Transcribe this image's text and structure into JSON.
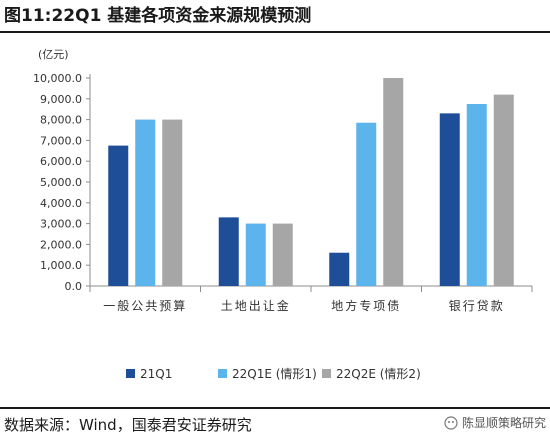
{
  "title": "图11:22Q1 基建各项资金来源规模预测",
  "source": "数据来源：Wind，国泰君安证券研究",
  "watermark": "陈显顺策略研究",
  "colors": {
    "21Q1": "#1f4e99",
    "22Q1E": "#5bb4ec",
    "22Q2E": "#a6a6a6"
  },
  "chart_data": {
    "type": "bar",
    "unit_label": "(亿元)",
    "categories": [
      "一般公共预算",
      "土地出让金",
      "地方专项债",
      "银行贷款"
    ],
    "series": [
      {
        "name": "21Q1",
        "values": [
          6750,
          3300,
          1600,
          8300
        ]
      },
      {
        "name": "22Q1E (情形1)",
        "values": [
          8000,
          3000,
          7850,
          8750
        ]
      },
      {
        "name": "22Q2E (情形2)",
        "values": [
          8000,
          3000,
          10000,
          9200
        ]
      }
    ],
    "ylim": [
      0,
      10000
    ],
    "yticks": [
      "0.0",
      "1,000.0",
      "2,000.0",
      "3,000.0",
      "4,000.0",
      "5,000.0",
      "6,000.0",
      "7,000.0",
      "8,000.0",
      "9,000.0",
      "10,000.0"
    ],
    "legend_position": "bottom"
  }
}
